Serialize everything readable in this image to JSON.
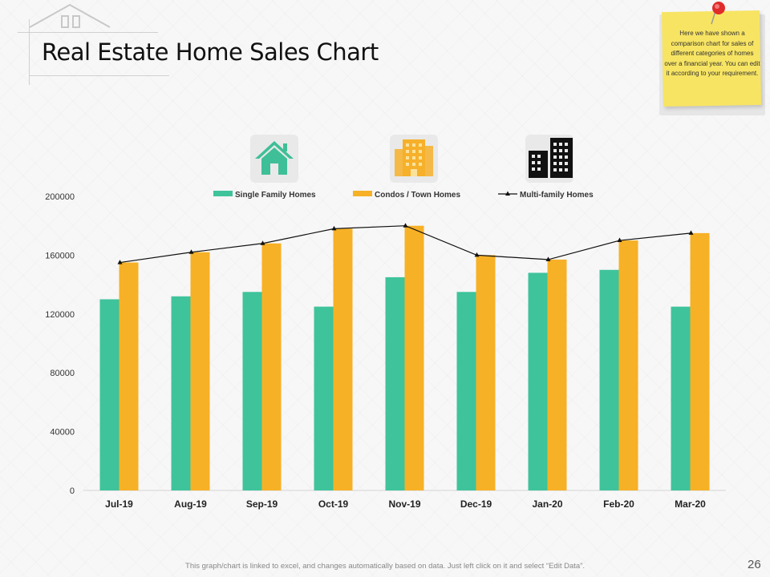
{
  "title": "Real Estate Home Sales Chart",
  "note": "Here we have shown a comparison chart for sales of different categories of homes over a financial year. You can edit it according to your requirement.",
  "footer": "This graph/chart is linked to excel, and changes automatically based on data. Just left click on it and select “Edit Data”.",
  "page_number": "26",
  "colors": {
    "single_family": "#3fc39b",
    "condos": "#f7b126",
    "multi_family": "#111111"
  },
  "icons": [
    "house-icon",
    "condo-building-icon",
    "apartment-buildings-icon"
  ],
  "chart_data": {
    "type": "bar",
    "categories": [
      "Jul-19",
      "Aug-19",
      "Sep-19",
      "Oct-19",
      "Nov-19",
      "Dec-19",
      "Jan-20",
      "Feb-20",
      "Mar-20"
    ],
    "series": [
      {
        "name": "Single Family Homes",
        "type": "bar",
        "color": "#3fc39b",
        "values": [
          130000,
          132000,
          135000,
          125000,
          145000,
          135000,
          148000,
          150000,
          125000
        ]
      },
      {
        "name": "Condos / Town Homes",
        "type": "bar",
        "color": "#f7b126",
        "values": [
          155000,
          162000,
          168000,
          178000,
          180000,
          160000,
          157000,
          170000,
          175000
        ]
      },
      {
        "name": "Multi-family Homes",
        "type": "line",
        "color": "#111111",
        "marker": "triangle",
        "values": [
          155000,
          162000,
          168000,
          178000,
          180000,
          160000,
          157000,
          170000,
          175000
        ]
      }
    ],
    "yticks": [
      "0",
      "40000",
      "80000",
      "120000",
      "160000",
      "200000"
    ],
    "ylim": [
      0,
      200000
    ],
    "legend": "top-center",
    "grid": false
  }
}
